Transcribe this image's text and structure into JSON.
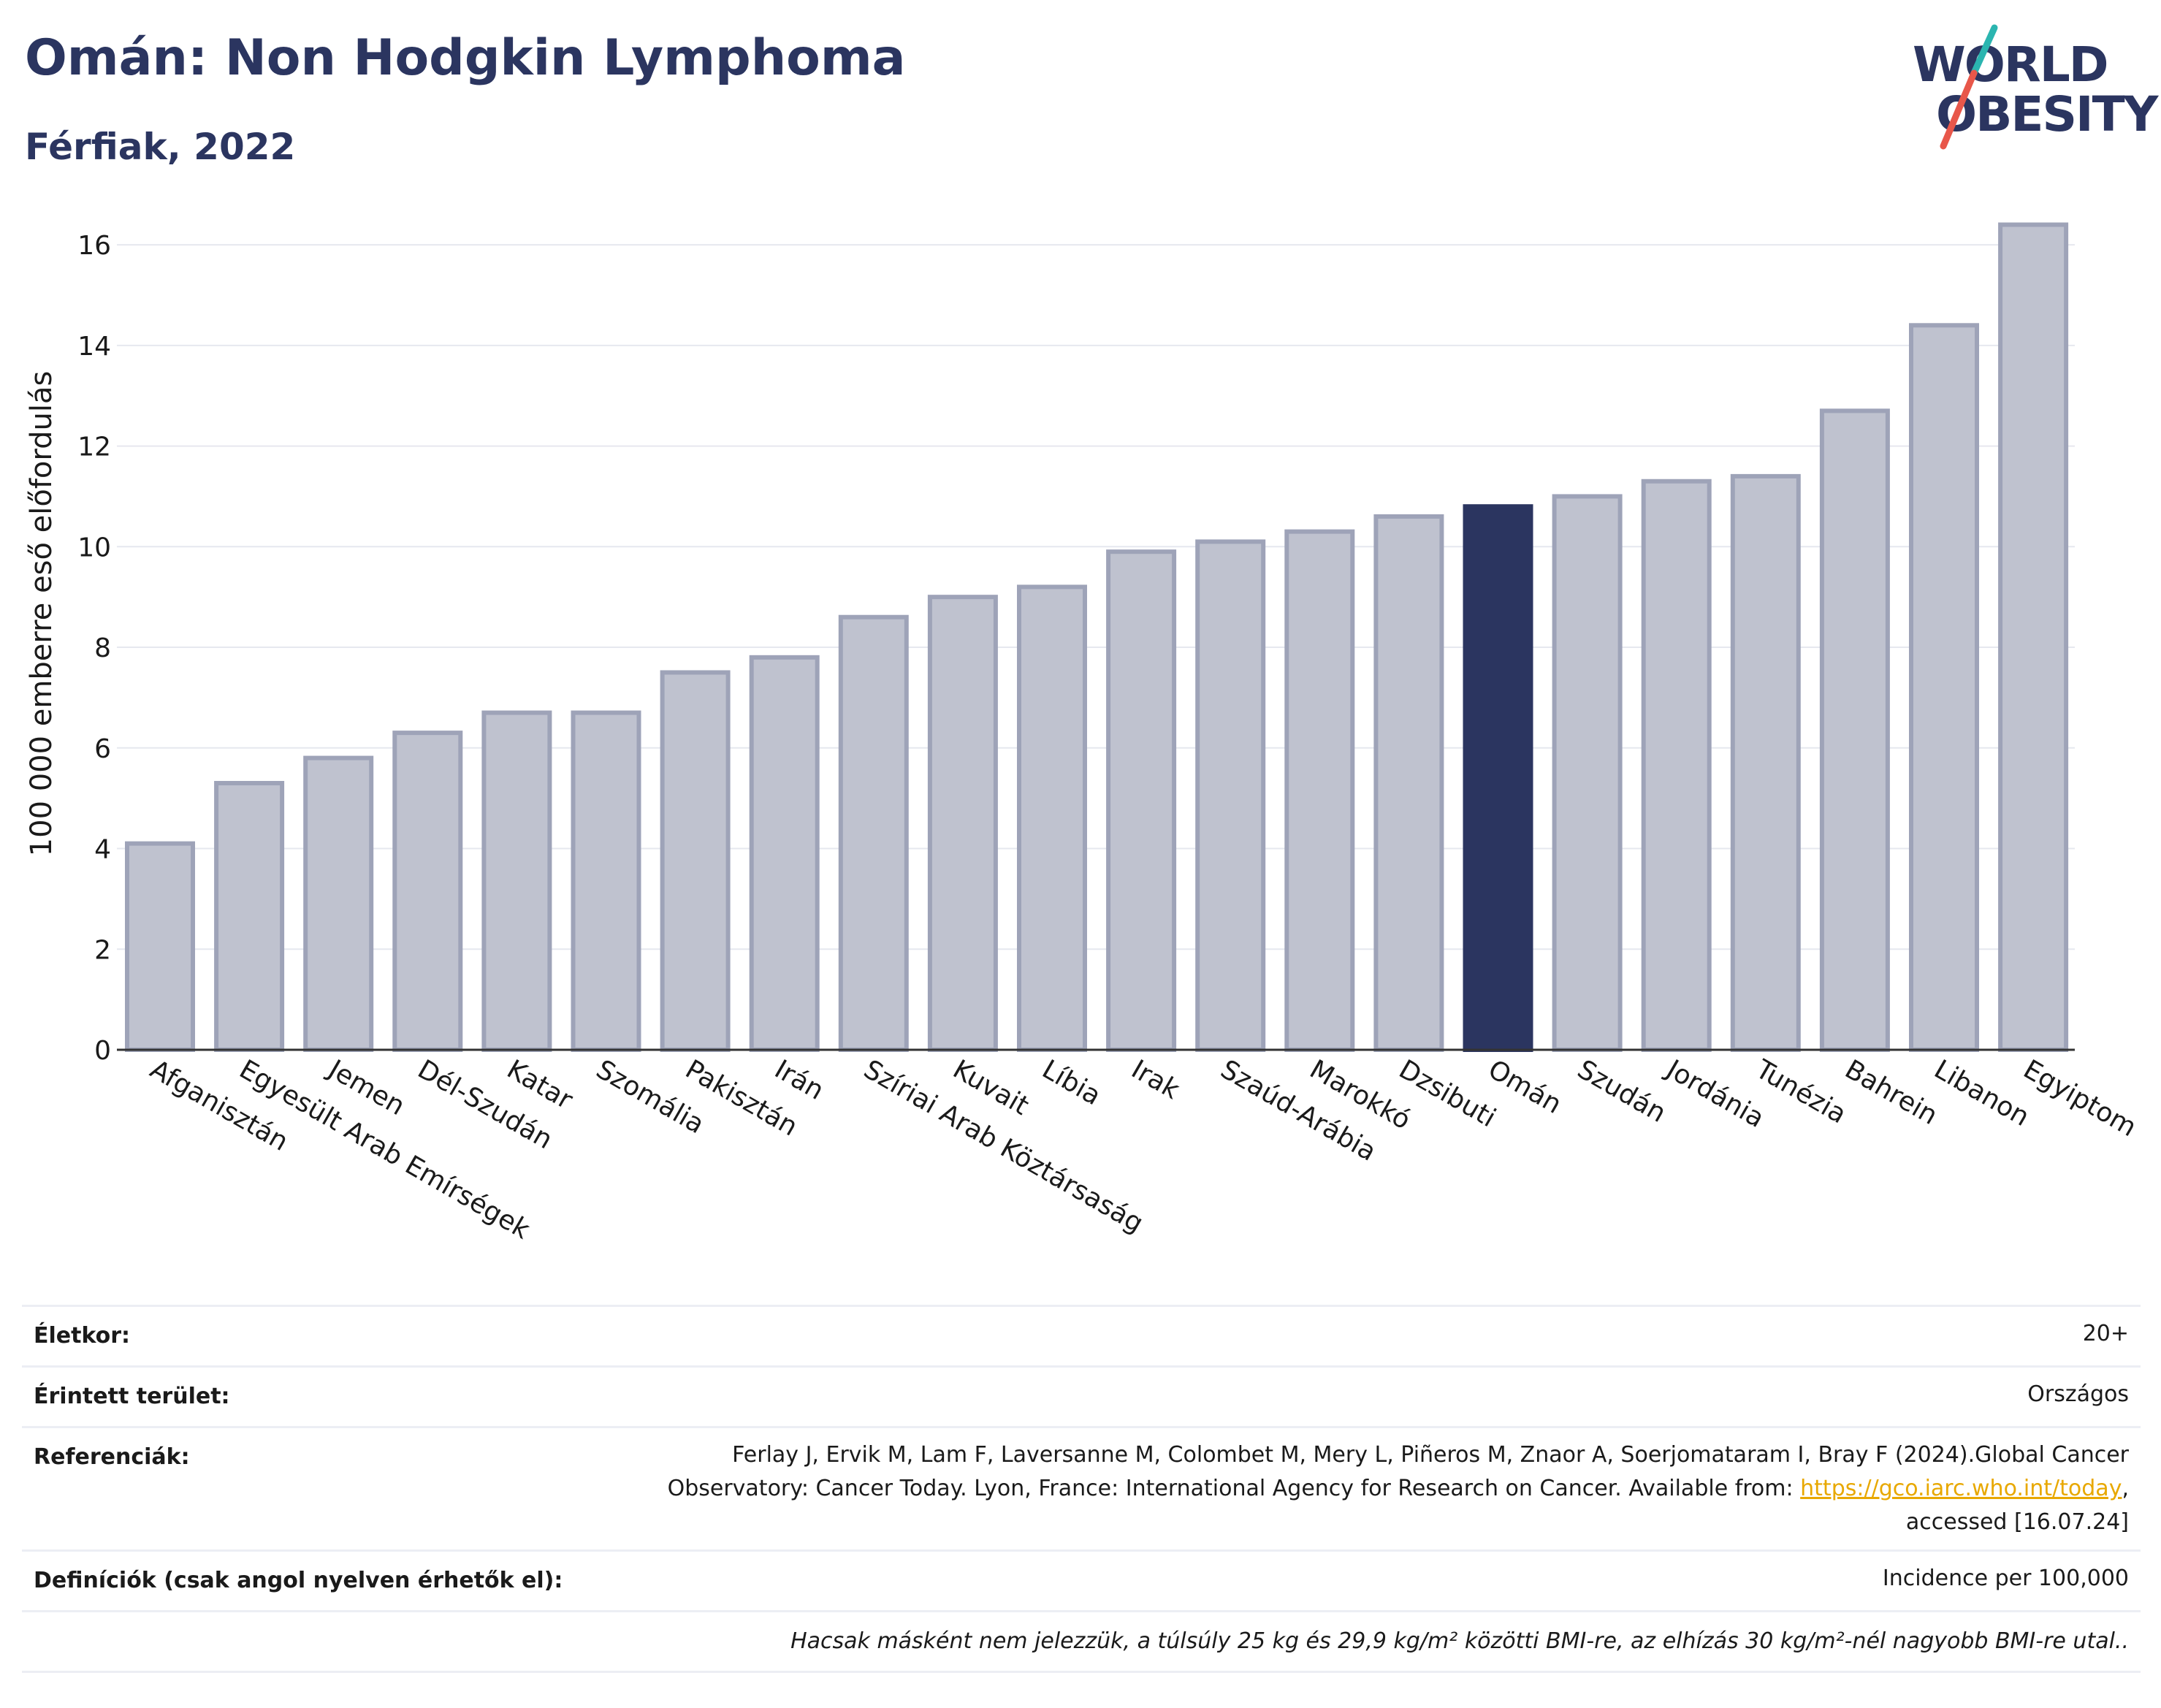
{
  "title": "Omán: Non Hodgkin Lymphoma",
  "subtitle": "Férfiak, 2022",
  "logo": {
    "line1": "WORLD",
    "line2": "OBESITY",
    "accent_colors": [
      "#2bb5b0",
      "#e8574a"
    ]
  },
  "colors": {
    "bar": "#bfc2cf",
    "bar_border": "#9ea3b8",
    "highlight": "#2b3560",
    "axis": "#333333",
    "grid": "#e6e8ef",
    "title": "#2b3560"
  },
  "chart_data": {
    "type": "bar",
    "ylabel": "100 000 emberre eső előfordulás",
    "xlabel": "",
    "ylim": [
      0,
      16.8
    ],
    "yticks": [
      0,
      2,
      4,
      6,
      8,
      10,
      12,
      14,
      16
    ],
    "grid": true,
    "highlight": "Omán",
    "categories": [
      "Afganisztán",
      "Egyesült Arab Emírségek",
      "Jemen",
      "Dél-Szudán",
      "Katar",
      "Szomália",
      "Pakisztán",
      "Irán",
      "Szíriai Arab Köztársaság",
      "Kuvait",
      "Líbia",
      "Irak",
      "Szaúd-Arábia",
      "Marokkó",
      "Dzsibuti",
      "Omán",
      "Szudán",
      "Jordánia",
      "Tunézia",
      "Bahrein",
      "Libanon",
      "Egyiptom"
    ],
    "values": [
      4.1,
      5.3,
      5.8,
      6.3,
      6.7,
      6.7,
      7.5,
      7.8,
      8.6,
      9.0,
      9.2,
      9.9,
      10.1,
      10.3,
      10.6,
      10.8,
      11.0,
      11.3,
      11.4,
      12.7,
      14.4,
      16.4
    ]
  },
  "info": {
    "age_label": "Életkor:",
    "age_value": "20+",
    "area_label": "Érintett terület:",
    "area_value": "Országos",
    "ref_label": "Referenciák:",
    "ref_line1": "Ferlay J, Ervik M, Lam F, Laversanne M, Colombet M, Mery L, Piñeros M, Znaor A, Soerjomataram I, Bray F (2024).Global Cancer",
    "ref_line2_pre": "Observatory: Cancer Today. Lyon, France: International Agency for Research on Cancer. Available from: ",
    "ref_link": "https://gco.iarc.who.int/today",
    "ref_line2_post": ",",
    "ref_line3": "accessed [16.07.24]",
    "def_label": "Definíciók (csak angol nyelven érhetők el):",
    "def_value": "Incidence per 100,000",
    "note": "Hacsak másként nem jelezzük, a túlsúly 25 kg és 29,9 kg/m² közötti BMI-re, az elhízás 30 kg/m²-nél nagyobb BMI-re utal.."
  }
}
